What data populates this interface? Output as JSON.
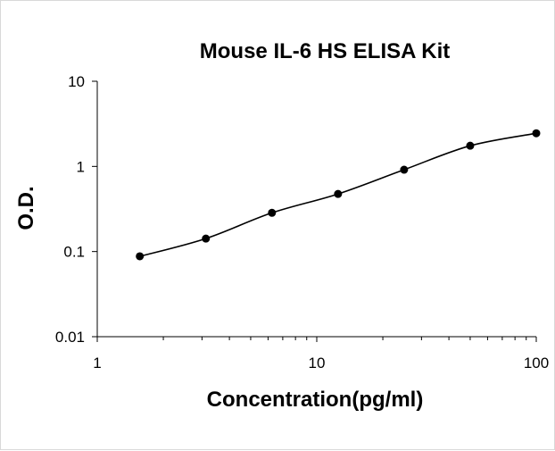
{
  "chart_data": {
    "type": "scatter",
    "title": "Mouse IL-6 HS ELISA Kit",
    "xlabel": "Concentration(pg/ml)",
    "ylabel": "O.D.",
    "x_scale": "log",
    "y_scale": "log",
    "xlim": [
      1,
      100
    ],
    "ylim": [
      0.01,
      10
    ],
    "x_ticks": [
      "1",
      "10",
      "100"
    ],
    "y_ticks": [
      "0.01",
      "0.1",
      "1",
      "10"
    ],
    "grid": false,
    "legend": "none",
    "series": [
      {
        "x": [
          1.5625,
          3.125,
          6.25,
          12.5,
          25,
          50,
          100
        ],
        "y": [
          0.088,
          0.142,
          0.285,
          0.475,
          0.915,
          1.75,
          2.45
        ],
        "trendline": "smooth fit"
      }
    ],
    "colors": {
      "marker": "#000000",
      "line": "#000000",
      "axis": "#000000"
    }
  }
}
